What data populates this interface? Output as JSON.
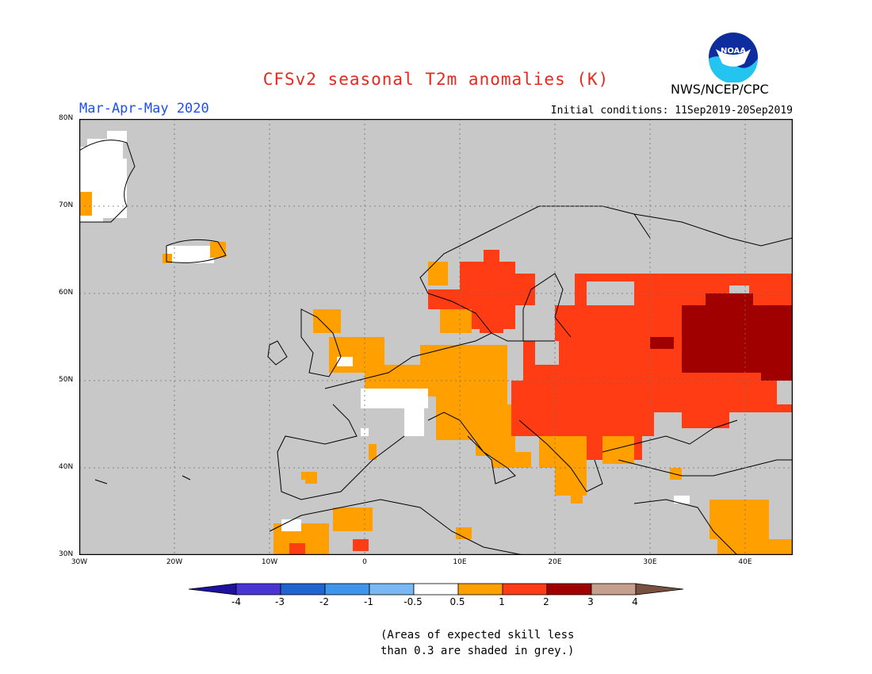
{
  "title": "CFSv2 seasonal T2m anomalies (K)",
  "period": "Mar-Apr-May 2020",
  "initial_conditions": "Initial conditions: 11Sep2019-20Sep2019",
  "agency": "NWS/NCEP/CPC",
  "logo_text": "NOAA",
  "lat_labels": [
    "80N",
    "70N",
    "60N",
    "50N",
    "40N",
    "30N"
  ],
  "lon_labels": [
    "30W",
    "20W",
    "10W",
    "0",
    "10E",
    "20E",
    "30E",
    "40E"
  ],
  "colorbar": {
    "labels": [
      "-4",
      "-3",
      "-2",
      "-1",
      "-0.5",
      "0.5",
      "1",
      "2",
      "3",
      "4"
    ],
    "colors": [
      "#1e10a0",
      "#4935d4",
      "#1f64d2",
      "#3c96ee",
      "#78b8f5",
      "#ffffff",
      "#ffa000",
      "#ff3c14",
      "#a00000",
      "#c6a08c",
      "#7a5040"
    ]
  },
  "note": [
    "(Areas of expected skill less",
    "than 0.3 are shaded in grey.)"
  ],
  "colors": {
    "background_grey": "#c8c8c8",
    "orange": "#ffa000",
    "red": "#ff3c14",
    "dark_red": "#a00000",
    "white": "#ffffff"
  }
}
